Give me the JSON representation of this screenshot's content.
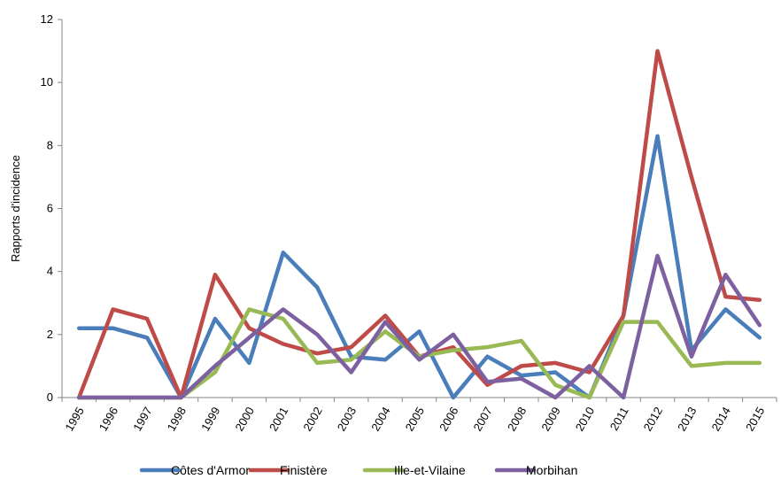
{
  "chart_data": {
    "type": "line",
    "ylabel": "Rapports d'incidence",
    "xlabel": "",
    "ylim": [
      0,
      12
    ],
    "yticks": [
      0,
      2,
      4,
      6,
      8,
      10,
      12
    ],
    "grid": false,
    "legend_position": "bottom",
    "categories": [
      "1995",
      "1996",
      "1997",
      "1998",
      "1999",
      "2000",
      "2001",
      "2002",
      "2003",
      "2004",
      "2005",
      "2006",
      "2007",
      "2008",
      "2009",
      "2010",
      "2011",
      "2012",
      "2013",
      "2014",
      "2015"
    ],
    "series": [
      {
        "name": "Côtes d'Armor",
        "color": "#4a7ebb",
        "values": [
          2.2,
          2.2,
          1.9,
          0,
          2.5,
          1.1,
          4.6,
          3.5,
          1.3,
          1.2,
          2.1,
          0,
          1.3,
          0.7,
          0.8,
          0,
          2.6,
          8.3,
          1.5,
          2.8,
          1.9
        ]
      },
      {
        "name": "Finistère",
        "color": "#be4b48",
        "values": [
          0,
          2.8,
          2.5,
          0,
          3.9,
          2.2,
          1.7,
          1.4,
          1.6,
          2.6,
          1.3,
          1.6,
          0.4,
          1.0,
          1.1,
          0.8,
          2.6,
          11.0,
          7.0,
          3.2,
          3.1
        ]
      },
      {
        "name": "Ille-et-Vilaine",
        "color": "#98b954",
        "values": [
          0,
          0,
          0,
          0,
          0.8,
          2.8,
          2.5,
          1.1,
          1.2,
          2.1,
          1.3,
          1.5,
          1.6,
          1.8,
          0.4,
          0,
          2.4,
          2.4,
          1.0,
          1.1,
          1.1
        ]
      },
      {
        "name": "Morbihan",
        "color": "#7d60a0",
        "values": [
          0,
          0,
          0,
          0,
          1.0,
          1.9,
          2.8,
          2.0,
          0.8,
          2.4,
          1.2,
          2.0,
          0.5,
          0.6,
          0,
          1.0,
          0,
          4.5,
          1.3,
          3.9,
          2.3
        ]
      }
    ]
  }
}
